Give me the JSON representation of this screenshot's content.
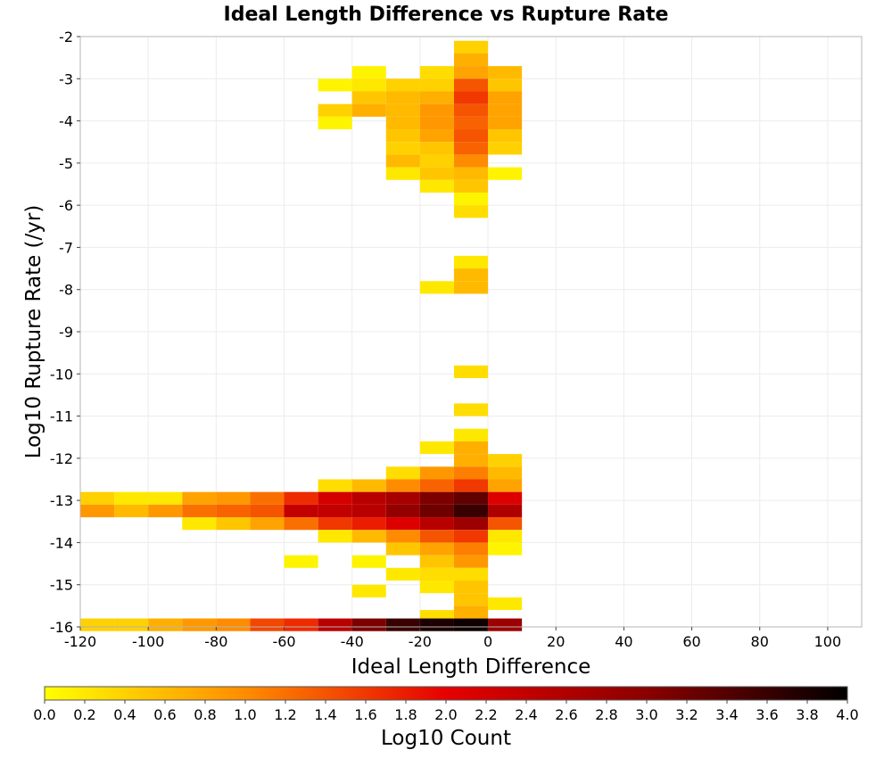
{
  "chart_data": {
    "type": "heatmap",
    "title": "Ideal Length Difference vs Rupture Rate",
    "xlabel": "Ideal Length Difference",
    "ylabel": "Log10 Rupture Rate (/yr)",
    "colorbar_label": "Log10 Count",
    "xlim": [
      -120,
      110
    ],
    "ylim": [
      -16,
      -2
    ],
    "x_ticks": [
      -120,
      -100,
      -80,
      -60,
      -40,
      -20,
      0,
      20,
      40,
      60,
      80,
      100
    ],
    "y_ticks": [
      -2,
      -3,
      -4,
      -5,
      -6,
      -7,
      -8,
      -9,
      -10,
      -11,
      -12,
      -13,
      -14,
      -15,
      -16
    ],
    "x_tick_labels": [
      "-120",
      "-100",
      "-80",
      "-60",
      "-40",
      "-20",
      "0",
      "20",
      "40",
      "60",
      "80",
      "100"
    ],
    "y_tick_labels": [
      "-2",
      "-3",
      "-4",
      "-5",
      "-6",
      "-7",
      "-8",
      "-9",
      "-10",
      "-11",
      "-12",
      "-13",
      "-14",
      "-15",
      "-16"
    ],
    "colorbar_ticks": [
      "0.0",
      "0.2",
      "0.4",
      "0.6",
      "0.8",
      "1.0",
      "1.2",
      "1.4",
      "1.6",
      "1.8",
      "2.0",
      "2.2",
      "2.4",
      "2.6",
      "2.8",
      "3.0",
      "3.2",
      "3.4",
      "3.6",
      "3.8",
      "4.0"
    ],
    "color_range": [
      0,
      4
    ],
    "colorscale": [
      "#ffff00",
      "#ff8c00",
      "#e60000",
      "#8b0000",
      "#000000"
    ],
    "grid": true,
    "bin_width_x": 10,
    "bin_height_y": 0.3,
    "cells": [
      {
        "x": -5,
        "y": -2.25,
        "v": 0.4
      },
      {
        "x": -5,
        "y": -2.55,
        "v": 0.7
      },
      {
        "x": -35,
        "y": -2.85,
        "v": 0.1
      },
      {
        "x": -15,
        "y": -2.85,
        "v": 0.3
      },
      {
        "x": -5,
        "y": -2.85,
        "v": 0.8
      },
      {
        "x": 5,
        "y": -2.85,
        "v": 0.6
      },
      {
        "x": -45,
        "y": -3.15,
        "v": 0.1
      },
      {
        "x": -35,
        "y": -3.15,
        "v": 0.2
      },
      {
        "x": -25,
        "y": -3.15,
        "v": 0.4
      },
      {
        "x": -15,
        "y": -3.15,
        "v": 0.4
      },
      {
        "x": -5,
        "y": -3.15,
        "v": 1.4
      },
      {
        "x": 5,
        "y": -3.15,
        "v": 0.5
      },
      {
        "x": -35,
        "y": -3.45,
        "v": 0.5
      },
      {
        "x": -25,
        "y": -3.45,
        "v": 0.6
      },
      {
        "x": -15,
        "y": -3.45,
        "v": 0.7
      },
      {
        "x": -5,
        "y": -3.45,
        "v": 1.6
      },
      {
        "x": 5,
        "y": -3.45,
        "v": 0.8
      },
      {
        "x": -45,
        "y": -3.75,
        "v": 0.4
      },
      {
        "x": -35,
        "y": -3.75,
        "v": 0.7
      },
      {
        "x": -25,
        "y": -3.75,
        "v": 0.6
      },
      {
        "x": -15,
        "y": -3.75,
        "v": 0.9
      },
      {
        "x": -5,
        "y": -3.75,
        "v": 1.4
      },
      {
        "x": 5,
        "y": -3.75,
        "v": 0.8
      },
      {
        "x": -45,
        "y": -4.05,
        "v": 0.1
      },
      {
        "x": -25,
        "y": -4.05,
        "v": 0.6
      },
      {
        "x": -15,
        "y": -4.05,
        "v": 0.9
      },
      {
        "x": -5,
        "y": -4.05,
        "v": 1.3
      },
      {
        "x": 5,
        "y": -4.05,
        "v": 0.8
      },
      {
        "x": -25,
        "y": -4.35,
        "v": 0.5
      },
      {
        "x": -15,
        "y": -4.35,
        "v": 0.8
      },
      {
        "x": -5,
        "y": -4.35,
        "v": 1.4
      },
      {
        "x": 5,
        "y": -4.35,
        "v": 0.5
      },
      {
        "x": -25,
        "y": -4.65,
        "v": 0.4
      },
      {
        "x": -15,
        "y": -4.65,
        "v": 0.5
      },
      {
        "x": -5,
        "y": -4.65,
        "v": 1.3
      },
      {
        "x": 5,
        "y": -4.65,
        "v": 0.4
      },
      {
        "x": -25,
        "y": -4.95,
        "v": 0.6
      },
      {
        "x": -15,
        "y": -4.95,
        "v": 0.4
      },
      {
        "x": -5,
        "y": -4.95,
        "v": 1.0
      },
      {
        "x": -25,
        "y": -5.25,
        "v": 0.2
      },
      {
        "x": -15,
        "y": -5.25,
        "v": 0.5
      },
      {
        "x": -5,
        "y": -5.25,
        "v": 0.6
      },
      {
        "x": 5,
        "y": -5.25,
        "v": 0.1
      },
      {
        "x": -15,
        "y": -5.55,
        "v": 0.2
      },
      {
        "x": -5,
        "y": -5.55,
        "v": 0.5
      },
      {
        "x": -5,
        "y": -5.85,
        "v": 0.1
      },
      {
        "x": -5,
        "y": -6.15,
        "v": 0.3
      },
      {
        "x": -5,
        "y": -7.35,
        "v": 0.2
      },
      {
        "x": -5,
        "y": -7.65,
        "v": 0.6
      },
      {
        "x": -15,
        "y": -7.95,
        "v": 0.2
      },
      {
        "x": -5,
        "y": -7.95,
        "v": 0.6
      },
      {
        "x": -5,
        "y": -9.95,
        "v": 0.3
      },
      {
        "x": -5,
        "y": -10.85,
        "v": 0.3
      },
      {
        "x": -5,
        "y": -11.45,
        "v": 0.2
      },
      {
        "x": -15,
        "y": -11.75,
        "v": 0.2
      },
      {
        "x": -5,
        "y": -11.75,
        "v": 0.7
      },
      {
        "x": -5,
        "y": -12.05,
        "v": 0.7
      },
      {
        "x": 5,
        "y": -12.05,
        "v": 0.4
      },
      {
        "x": -25,
        "y": -12.35,
        "v": 0.3
      },
      {
        "x": -15,
        "y": -12.35,
        "v": 0.9
      },
      {
        "x": -5,
        "y": -12.35,
        "v": 1.1
      },
      {
        "x": 5,
        "y": -12.35,
        "v": 0.6
      },
      {
        "x": -45,
        "y": -12.65,
        "v": 0.3
      },
      {
        "x": -35,
        "y": -12.65,
        "v": 0.6
      },
      {
        "x": -25,
        "y": -12.65,
        "v": 1.0
      },
      {
        "x": -15,
        "y": -12.65,
        "v": 1.3
      },
      {
        "x": -5,
        "y": -12.65,
        "v": 1.6
      },
      {
        "x": 5,
        "y": -12.65,
        "v": 0.8
      },
      {
        "x": -115,
        "y": -12.95,
        "v": 0.4
      },
      {
        "x": -105,
        "y": -12.95,
        "v": 0.2
      },
      {
        "x": -95,
        "y": -12.95,
        "v": 0.2
      },
      {
        "x": -85,
        "y": -12.95,
        "v": 0.8
      },
      {
        "x": -75,
        "y": -12.95,
        "v": 0.9
      },
      {
        "x": -65,
        "y": -12.95,
        "v": 1.2
      },
      {
        "x": -55,
        "y": -12.95,
        "v": 1.7
      },
      {
        "x": -45,
        "y": -12.95,
        "v": 2.2
      },
      {
        "x": -35,
        "y": -12.95,
        "v": 2.5
      },
      {
        "x": -25,
        "y": -12.95,
        "v": 2.7
      },
      {
        "x": -15,
        "y": -12.95,
        "v": 3.1
      },
      {
        "x": -5,
        "y": -12.95,
        "v": 3.3
      },
      {
        "x": 5,
        "y": -12.95,
        "v": 2.1
      },
      {
        "x": -115,
        "y": -13.25,
        "v": 0.9
      },
      {
        "x": -105,
        "y": -13.25,
        "v": 0.6
      },
      {
        "x": -95,
        "y": -13.25,
        "v": 0.9
      },
      {
        "x": -85,
        "y": -13.25,
        "v": 1.2
      },
      {
        "x": -75,
        "y": -13.25,
        "v": 1.3
      },
      {
        "x": -65,
        "y": -13.25,
        "v": 1.4
      },
      {
        "x": -55,
        "y": -13.25,
        "v": 2.4
      },
      {
        "x": -45,
        "y": -13.25,
        "v": 2.4
      },
      {
        "x": -35,
        "y": -13.25,
        "v": 2.5
      },
      {
        "x": -25,
        "y": -13.25,
        "v": 2.9
      },
      {
        "x": -15,
        "y": -13.25,
        "v": 3.2
      },
      {
        "x": -5,
        "y": -13.25,
        "v": 3.6
      },
      {
        "x": 5,
        "y": -13.25,
        "v": 2.6
      },
      {
        "x": -85,
        "y": -13.55,
        "v": 0.2
      },
      {
        "x": -75,
        "y": -13.55,
        "v": 0.5
      },
      {
        "x": -65,
        "y": -13.55,
        "v": 0.8
      },
      {
        "x": -55,
        "y": -13.55,
        "v": 1.2
      },
      {
        "x": -45,
        "y": -13.55,
        "v": 1.6
      },
      {
        "x": -35,
        "y": -13.55,
        "v": 1.8
      },
      {
        "x": -25,
        "y": -13.55,
        "v": 2.1
      },
      {
        "x": -15,
        "y": -13.55,
        "v": 2.5
      },
      {
        "x": -5,
        "y": -13.55,
        "v": 2.8
      },
      {
        "x": 5,
        "y": -13.55,
        "v": 1.4
      },
      {
        "x": -45,
        "y": -13.85,
        "v": 0.2
      },
      {
        "x": -35,
        "y": -13.85,
        "v": 0.6
      },
      {
        "x": -25,
        "y": -13.85,
        "v": 1.0
      },
      {
        "x": -15,
        "y": -13.85,
        "v": 1.4
      },
      {
        "x": -5,
        "y": -13.85,
        "v": 1.6
      },
      {
        "x": 5,
        "y": -13.85,
        "v": 0.2
      },
      {
        "x": -25,
        "y": -14.15,
        "v": 0.5
      },
      {
        "x": -15,
        "y": -14.15,
        "v": 0.8
      },
      {
        "x": -5,
        "y": -14.15,
        "v": 1.1
      },
      {
        "x": 5,
        "y": -14.15,
        "v": 0.1
      },
      {
        "x": -55,
        "y": -14.45,
        "v": 0.1
      },
      {
        "x": -35,
        "y": -14.45,
        "v": 0.1
      },
      {
        "x": -15,
        "y": -14.45,
        "v": 0.5
      },
      {
        "x": -5,
        "y": -14.45,
        "v": 0.9
      },
      {
        "x": -25,
        "y": -14.75,
        "v": 0.2
      },
      {
        "x": -15,
        "y": -14.75,
        "v": 0.3
      },
      {
        "x": -5,
        "y": -14.75,
        "v": 0.3
      },
      {
        "x": -15,
        "y": -15.05,
        "v": 0.2
      },
      {
        "x": -5,
        "y": -15.05,
        "v": 0.5
      },
      {
        "x": -35,
        "y": -15.15,
        "v": 0.2
      },
      {
        "x": -5,
        "y": -15.35,
        "v": 0.5
      },
      {
        "x": 5,
        "y": -15.45,
        "v": 0.2
      },
      {
        "x": -5,
        "y": -15.65,
        "v": 0.7
      },
      {
        "x": -15,
        "y": -15.75,
        "v": 0.3
      },
      {
        "x": -115,
        "y": -15.95,
        "v": 0.4
      },
      {
        "x": -105,
        "y": -15.95,
        "v": 0.4
      },
      {
        "x": -95,
        "y": -15.95,
        "v": 0.7
      },
      {
        "x": -85,
        "y": -15.95,
        "v": 0.9
      },
      {
        "x": -75,
        "y": -15.95,
        "v": 1.0
      },
      {
        "x": -65,
        "y": -15.95,
        "v": 1.5
      },
      {
        "x": -55,
        "y": -15.95,
        "v": 1.7
      },
      {
        "x": -45,
        "y": -15.95,
        "v": 2.5
      },
      {
        "x": -35,
        "y": -15.95,
        "v": 3.1
      },
      {
        "x": -25,
        "y": -15.95,
        "v": 3.6
      },
      {
        "x": -15,
        "y": -15.95,
        "v": 3.8
      },
      {
        "x": -5,
        "y": -15.95,
        "v": 3.9
      },
      {
        "x": 5,
        "y": -15.95,
        "v": 2.8
      }
    ]
  }
}
